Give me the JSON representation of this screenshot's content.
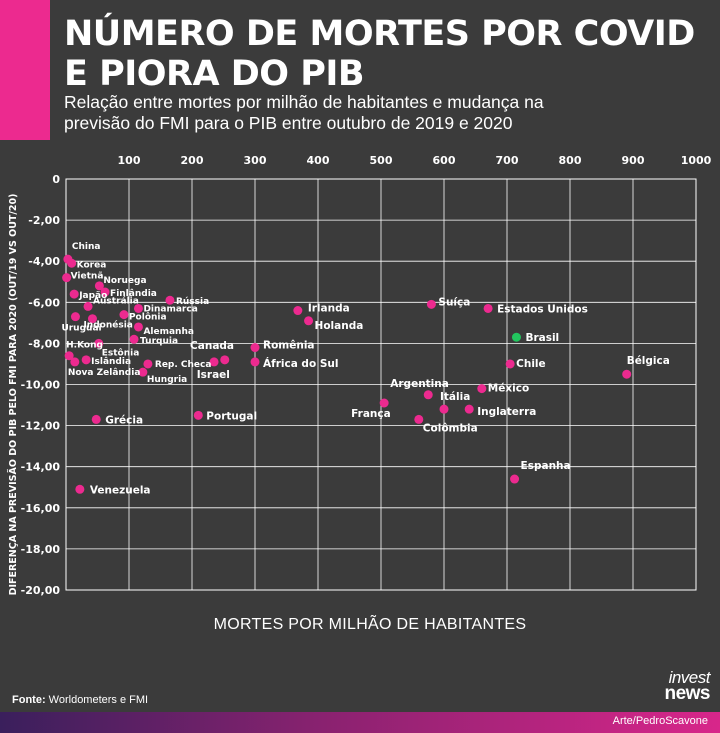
{
  "header": {
    "title_line1": "NÚMERO DE MORTES POR COVID",
    "title_line2": "E PIORA DO PIB",
    "subtitle_line1": "Relação entre mortes por milhão de habitantes e mudança na",
    "subtitle_line2": "previsão do FMI para o PIB entre outubro de 2019 e 2020"
  },
  "footer": {
    "source_label": "Fonte:",
    "source_text": " Worldometers e FMI",
    "credit": "Arte/PedroScavone",
    "logo_line1": "invest",
    "logo_line2": "news"
  },
  "colors": {
    "background": "#3b3b3b",
    "accent": "#ec2a8f",
    "highlight": "#22c55e",
    "grid": "#ffffff"
  },
  "chart_data": {
    "type": "scatter",
    "xlabel": "MORTES POR MILHÃO DE HABITANTES",
    "ylabel": "DIFERENÇA NA PREVISÃO DO PIB PELO FMI PARA 2020 (OUT/19 VS OUT/20)",
    "xlim": [
      0,
      1000
    ],
    "ylim": [
      -20,
      0
    ],
    "x_ticks": [
      "100",
      "200",
      "300",
      "400",
      "500",
      "600",
      "700",
      "800",
      "900",
      "1000"
    ],
    "y_ticks": [
      "0",
      "-2,00",
      "-4,00",
      "-6,00",
      "-8,00",
      "-10,00",
      "-12,00",
      "-14,00",
      "-16,00",
      "-18,00",
      "-20,00"
    ],
    "x_axis_position": "top",
    "grid": true,
    "series": [
      {
        "color": "#ec2a8f",
        "points": [
          {
            "label": "China",
            "x": 3,
            "y": -3.9
          },
          {
            "label": "Korea",
            "x": 9,
            "y": -4.1
          },
          {
            "label": "Vietnã",
            "x": 1,
            "y": -4.8
          },
          {
            "label": "Japão",
            "x": 13,
            "y": -5.6
          },
          {
            "label": "Noruega",
            "x": 53,
            "y": -5.2
          },
          {
            "label": "Finlândia",
            "x": 62,
            "y": -5.5
          },
          {
            "label": "Austrália",
            "x": 35,
            "y": -6.2
          },
          {
            "label": "Dinamarca",
            "x": 115,
            "y": -6.3
          },
          {
            "label": "Rússia",
            "x": 165,
            "y": -5.9
          },
          {
            "label": "Polônia",
            "x": 92,
            "y": -6.6
          },
          {
            "label": "Indonésia",
            "x": 42,
            "y": -6.8
          },
          {
            "label": "Alemanha",
            "x": 115,
            "y": -7.2
          },
          {
            "label": "Uruguai",
            "x": 15,
            "y": -6.7
          },
          {
            "label": "Turquia",
            "x": 108,
            "y": -7.8
          },
          {
            "label": "Estônia",
            "x": 52,
            "y": -8.0
          },
          {
            "label": "H.Kong",
            "x": 5,
            "y": -8.6
          },
          {
            "label": "Islândia",
            "x": 32,
            "y": -8.8
          },
          {
            "label": "Nova Zelândia",
            "x": 14,
            "y": -8.9
          },
          {
            "label": "Rep. Checa",
            "x": 130,
            "y": -9.0
          },
          {
            "label": "Hungria",
            "x": 122,
            "y": -9.4
          },
          {
            "label": "Canada",
            "x": 235,
            "y": -8.9
          },
          {
            "label": "Israel",
            "x": 252,
            "y": -8.8
          },
          {
            "label": "Romênia",
            "x": 300,
            "y": -8.2
          },
          {
            "label": "África do Sul",
            "x": 300,
            "y": -8.9
          },
          {
            "label": "Irlanda",
            "x": 368,
            "y": -6.4
          },
          {
            "label": "Holanda",
            "x": 385,
            "y": -6.9
          },
          {
            "label": "Suíça",
            "x": 580,
            "y": -6.1
          },
          {
            "label": "Estados Unidos",
            "x": 670,
            "y": -6.3
          },
          {
            "label": "Chile",
            "x": 705,
            "y": -9.0
          },
          {
            "label": "Bélgica",
            "x": 890,
            "y": -9.5
          },
          {
            "label": "Argentina",
            "x": 575,
            "y": -10.5
          },
          {
            "label": "México",
            "x": 660,
            "y": -10.2
          },
          {
            "label": "Itália",
            "x": 600,
            "y": -11.2
          },
          {
            "label": "Inglaterra",
            "x": 640,
            "y": -11.2
          },
          {
            "label": "França",
            "x": 505,
            "y": -10.9
          },
          {
            "label": "Colômbia",
            "x": 560,
            "y": -11.7
          },
          {
            "label": "Grécia",
            "x": 48,
            "y": -11.7
          },
          {
            "label": "Portugal",
            "x": 210,
            "y": -11.5
          },
          {
            "label": "Espanha",
            "x": 712,
            "y": -14.6
          },
          {
            "label": "Venezuela",
            "x": 22,
            "y": -15.1
          }
        ]
      },
      {
        "color": "#22c55e",
        "points": [
          {
            "label": "Brasil",
            "x": 715,
            "y": -7.7
          }
        ]
      }
    ]
  }
}
